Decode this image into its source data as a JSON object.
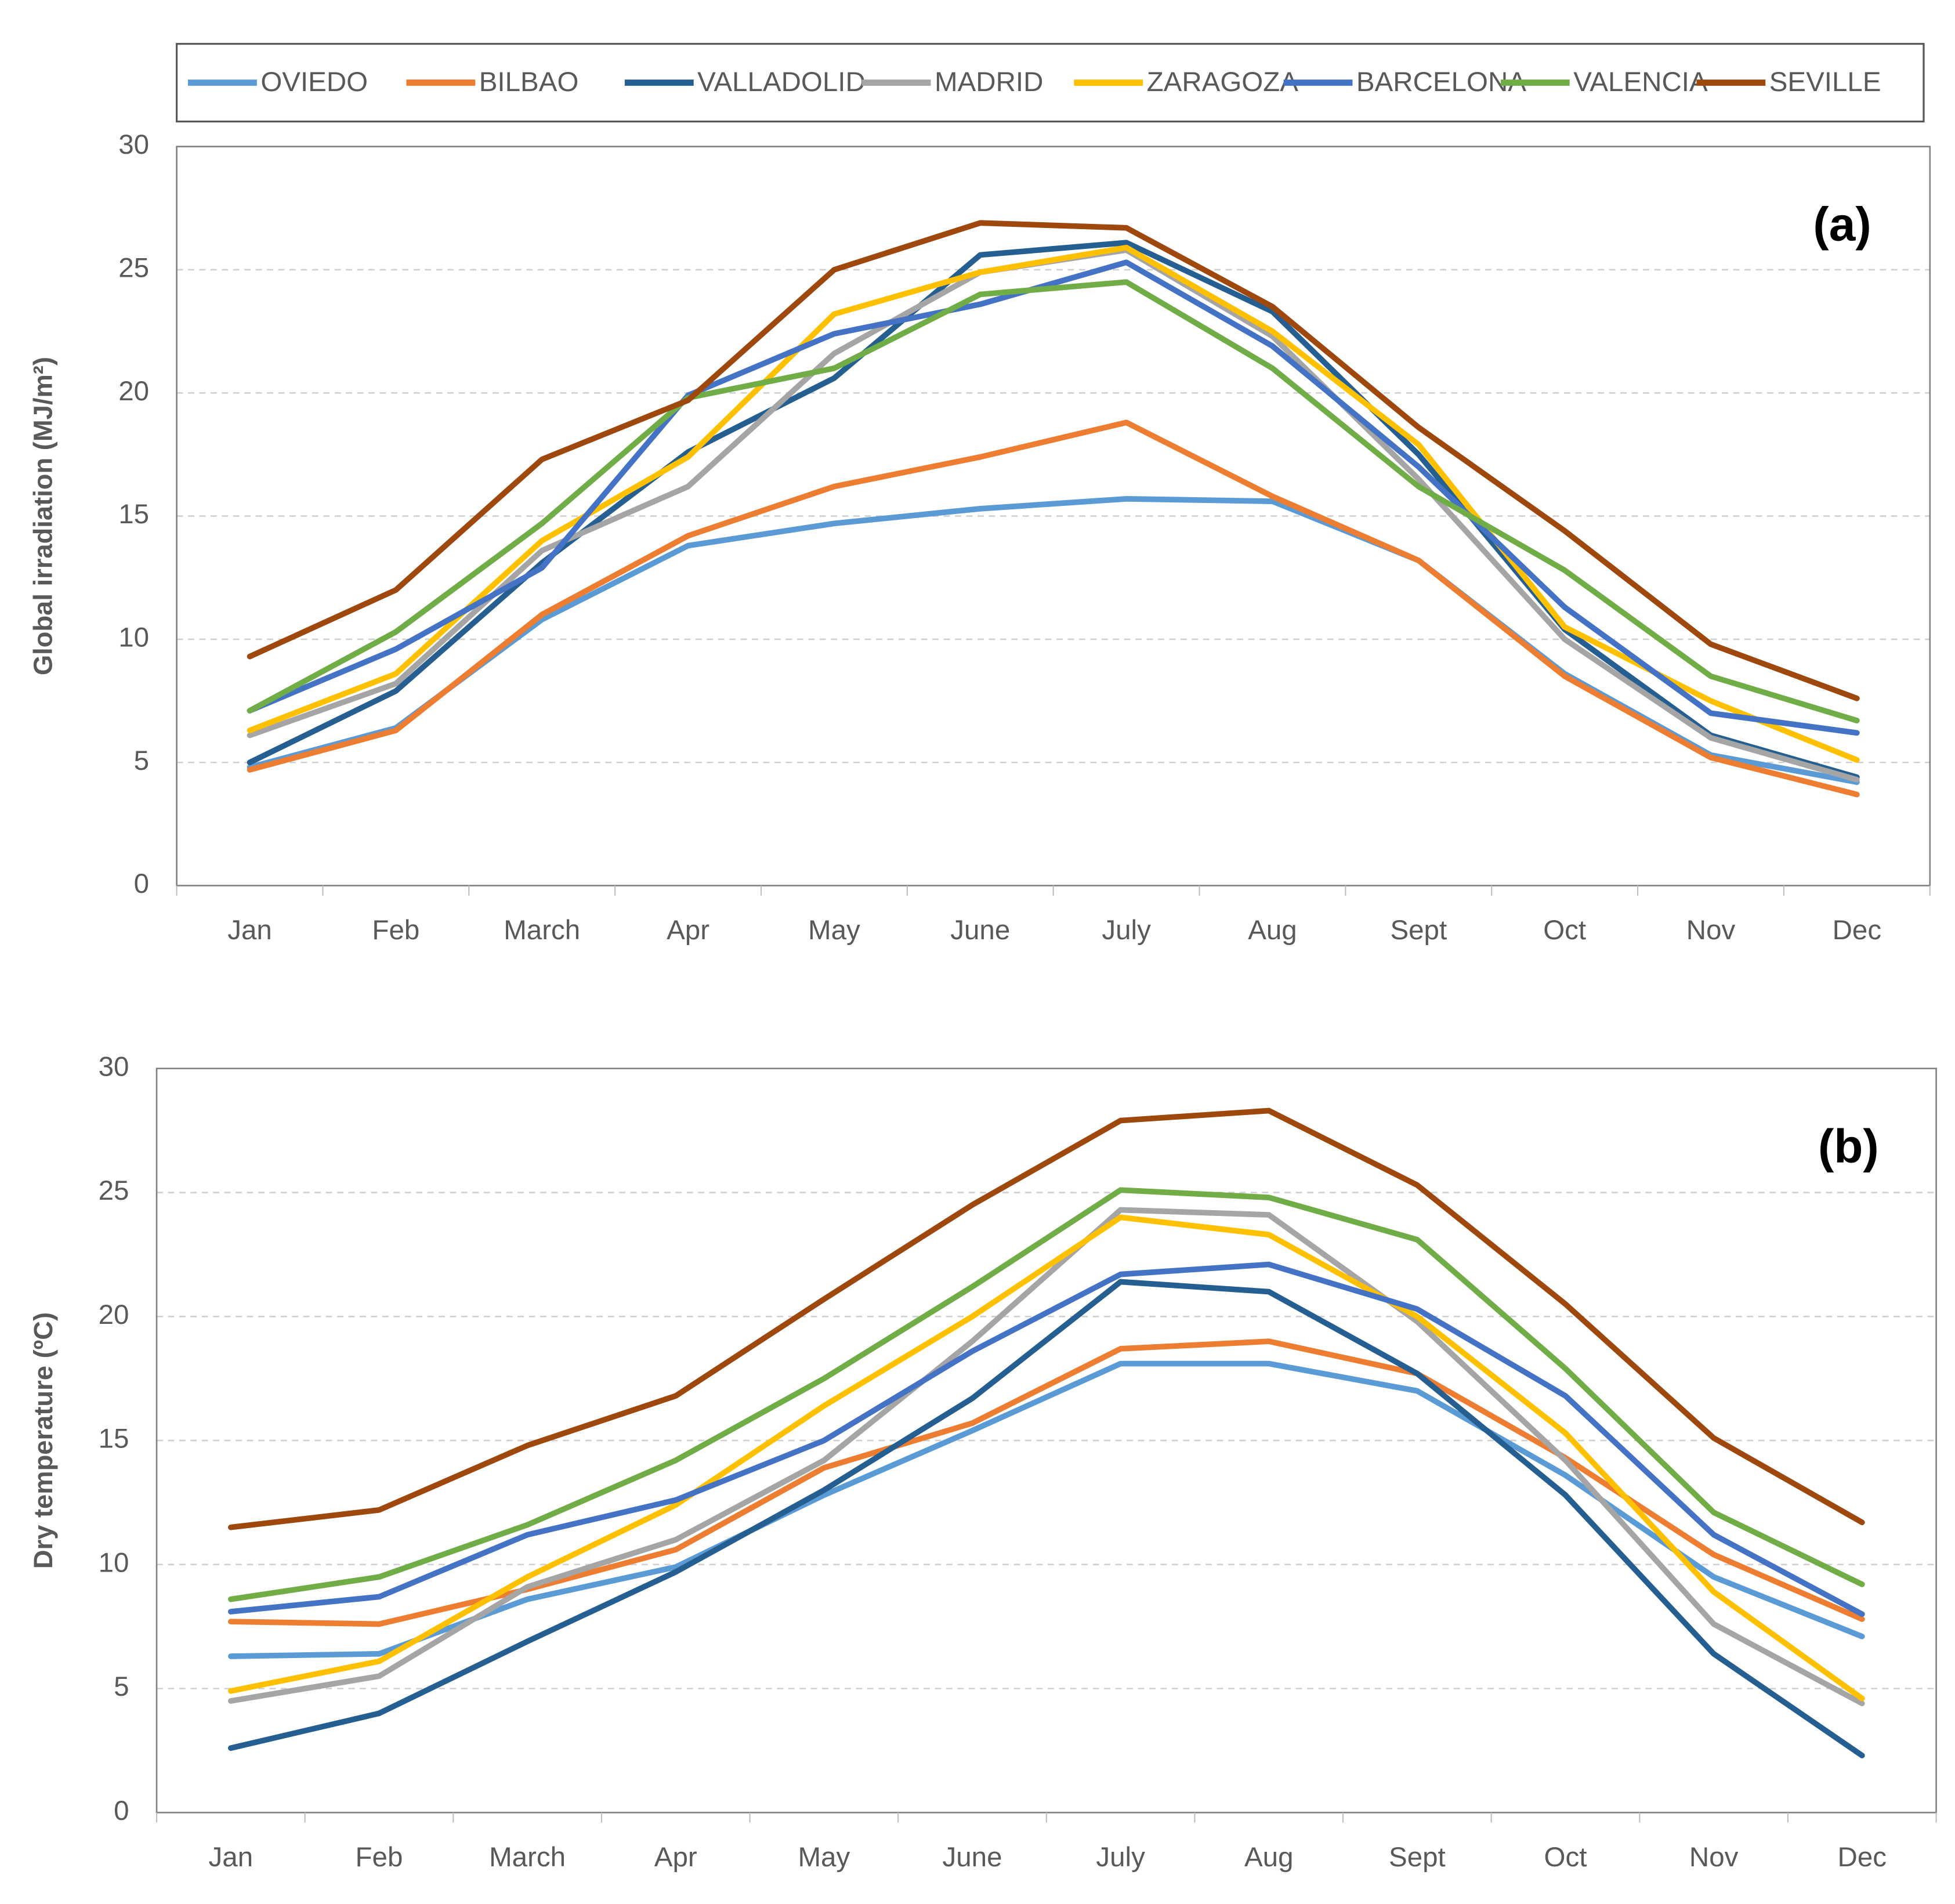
{
  "chart_data": [
    {
      "type": "line",
      "annotation": "(a)",
      "y_label": "Global irradiation (MJ/m²)",
      "categories": [
        "Jan",
        "Feb",
        "March",
        "Apr",
        "May",
        "June",
        "July",
        "Aug",
        "Sept",
        "Oct",
        "Nov",
        "Dec"
      ],
      "ylim": [
        0,
        30
      ],
      "yticks": [
        0,
        5,
        10,
        15,
        20,
        25,
        30
      ],
      "grid": true,
      "legend": "top",
      "series": [
        {
          "name": "OVIEDO",
          "color": "#5b9bd5",
          "values": [
            4.8,
            6.4,
            10.8,
            13.8,
            14.7,
            15.3,
            15.7,
            15.6,
            13.2,
            8.6,
            5.3,
            4.2
          ]
        },
        {
          "name": "BILBAO",
          "color": "#ed7d31",
          "values": [
            4.7,
            6.3,
            11.0,
            14.2,
            16.2,
            17.4,
            18.8,
            15.8,
            13.2,
            8.5,
            5.2,
            3.7
          ]
        },
        {
          "name": "VALLADOLID",
          "color": "#255e91",
          "values": [
            5.0,
            7.9,
            13.1,
            17.6,
            20.6,
            25.6,
            26.1,
            23.3,
            17.5,
            10.4,
            6.1,
            4.4
          ]
        },
        {
          "name": "MADRID",
          "color": "#a5a5a5",
          "values": [
            6.1,
            8.2,
            13.6,
            16.2,
            21.6,
            24.9,
            25.8,
            22.3,
            16.5,
            10.0,
            6.0,
            4.3
          ]
        },
        {
          "name": "ZARAGOZA",
          "color": "#ffc000",
          "values": [
            6.3,
            8.6,
            14.0,
            17.4,
            23.2,
            24.9,
            25.9,
            22.5,
            17.9,
            10.5,
            7.5,
            5.1
          ]
        },
        {
          "name": "BARCELONA",
          "color": "#4472c4",
          "values": [
            7.1,
            9.6,
            12.9,
            19.9,
            22.4,
            23.6,
            25.3,
            21.9,
            17.0,
            11.3,
            7.0,
            6.2
          ]
        },
        {
          "name": "VALENCIA",
          "color": "#70ad47",
          "values": [
            7.1,
            10.3,
            14.7,
            19.8,
            21.0,
            24.0,
            24.5,
            21.0,
            16.2,
            12.8,
            8.5,
            6.7
          ]
        },
        {
          "name": "SEVILLE",
          "color": "#9e480e",
          "values": [
            9.3,
            12.0,
            17.3,
            19.7,
            25.0,
            26.9,
            26.7,
            23.5,
            18.6,
            14.4,
            9.8,
            7.6
          ]
        }
      ]
    },
    {
      "type": "line",
      "annotation": "(b)",
      "y_label": "Dry temperature (ºC)",
      "categories": [
        "Jan",
        "Feb",
        "March",
        "Apr",
        "May",
        "June",
        "July",
        "Aug",
        "Sept",
        "Oct",
        "Nov",
        "Dec"
      ],
      "ylim": [
        0,
        30
      ],
      "yticks": [
        0,
        5,
        10,
        15,
        20,
        25,
        30
      ],
      "grid": true,
      "series": [
        {
          "color": "#5b9bd5",
          "values": [
            6.3,
            6.4,
            8.6,
            9.9,
            12.8,
            15.4,
            18.1,
            18.1,
            17.0,
            13.6,
            9.5,
            7.1
          ]
        },
        {
          "color": "#ed7d31",
          "values": [
            7.7,
            7.6,
            9.0,
            10.6,
            13.9,
            15.7,
            18.7,
            19.0,
            17.7,
            14.3,
            10.4,
            7.8
          ]
        },
        {
          "color": "#255e91",
          "values": [
            2.6,
            4.0,
            6.9,
            9.7,
            13.0,
            16.7,
            21.4,
            21.0,
            17.7,
            12.8,
            6.4,
            2.3
          ]
        },
        {
          "color": "#a5a5a5",
          "values": [
            4.5,
            5.5,
            9.1,
            11.0,
            14.2,
            19.0,
            24.3,
            24.1,
            19.8,
            14.2,
            7.6,
            4.4
          ]
        },
        {
          "color": "#ffc000",
          "values": [
            4.9,
            6.1,
            9.5,
            12.4,
            16.4,
            20.0,
            24.0,
            23.3,
            20.0,
            15.3,
            8.9,
            4.6
          ]
        },
        {
          "color": "#4472c4",
          "values": [
            8.1,
            8.7,
            11.2,
            12.6,
            15.0,
            18.6,
            21.7,
            22.1,
            20.3,
            16.8,
            11.2,
            8.0
          ]
        },
        {
          "color": "#70ad47",
          "values": [
            8.6,
            9.5,
            11.6,
            14.2,
            17.5,
            21.2,
            25.1,
            24.8,
            23.1,
            17.9,
            12.1,
            9.2
          ]
        },
        {
          "color": "#9e480e",
          "values": [
            11.5,
            12.2,
            14.8,
            16.8,
            20.7,
            24.5,
            27.9,
            28.3,
            25.3,
            20.5,
            15.1,
            11.7
          ]
        }
      ]
    }
  ]
}
